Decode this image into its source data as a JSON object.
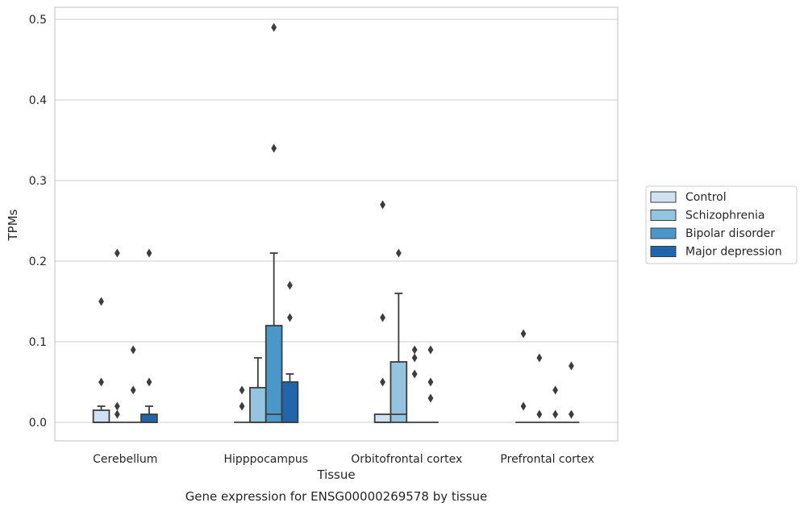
{
  "chart_data": {
    "type": "boxplot",
    "title": "",
    "xlabel": "Tissue",
    "ylabel": "TPMs",
    "caption": "Gene expression for ENSG00000269578 by tissue",
    "ylim": [
      -0.023,
      0.515
    ],
    "yticks": [
      "0.0",
      "0.1",
      "0.2",
      "0.3",
      "0.4",
      "0.5"
    ],
    "grid": true,
    "legend_position": "right",
    "categories": [
      "Cerebellum",
      "Hipppocampus",
      "Orbitofrontal cortex",
      "Prefrontal cortex"
    ],
    "series": [
      {
        "name": "Control",
        "color": "#d0e1f2",
        "boxes": [
          {
            "q1": 0.0,
            "median": 0.0,
            "q3": 0.015,
            "whislo": 0.0,
            "whishi": 0.02,
            "fliers": [
              0.05,
              0.15
            ]
          },
          {
            "q1": 0.0,
            "median": 0.0,
            "q3": 0.0,
            "whislo": 0.0,
            "whishi": 0.0,
            "fliers": [
              0.02,
              0.04
            ]
          },
          {
            "q1": 0.0,
            "median": 0.0,
            "q3": 0.01,
            "whislo": 0.0,
            "whishi": 0.01,
            "fliers": [
              0.05,
              0.13,
              0.27
            ]
          },
          {
            "q1": 0.0,
            "median": 0.0,
            "q3": 0.0,
            "whislo": 0.0,
            "whishi": 0.0,
            "fliers": [
              0.02,
              0.11
            ]
          }
        ]
      },
      {
        "name": "Schizophrenia",
        "color": "#94c4df",
        "boxes": [
          {
            "q1": 0.0,
            "median": 0.0,
            "q3": 0.0,
            "whislo": 0.0,
            "whishi": 0.0,
            "fliers": [
              0.01,
              0.02,
              0.21
            ]
          },
          {
            "q1": 0.0,
            "median": 0.0,
            "q3": 0.043,
            "whislo": 0.0,
            "whishi": 0.08,
            "fliers": []
          },
          {
            "q1": 0.0,
            "median": 0.01,
            "q3": 0.075,
            "whislo": 0.0,
            "whishi": 0.16,
            "fliers": [
              0.21
            ]
          },
          {
            "q1": 0.0,
            "median": 0.0,
            "q3": 0.0,
            "whislo": 0.0,
            "whishi": 0.0,
            "fliers": [
              0.01,
              0.08
            ]
          }
        ]
      },
      {
        "name": "Bipolar disorder",
        "color": "#4a98c9",
        "boxes": [
          {
            "q1": 0.0,
            "median": 0.0,
            "q3": 0.0,
            "whislo": 0.0,
            "whishi": 0.0,
            "fliers": [
              0.04,
              0.09
            ]
          },
          {
            "q1": 0.0,
            "median": 0.01,
            "q3": 0.12,
            "whislo": 0.0,
            "whishi": 0.21,
            "fliers": [
              0.34,
              0.49
            ]
          },
          {
            "q1": 0.0,
            "median": 0.0,
            "q3": 0.0,
            "whislo": 0.0,
            "whishi": 0.0,
            "fliers": [
              0.06,
              0.08,
              0.09
            ]
          },
          {
            "q1": 0.0,
            "median": 0.0,
            "q3": 0.0,
            "whislo": 0.0,
            "whishi": 0.0,
            "fliers": [
              0.01,
              0.04
            ]
          }
        ]
      },
      {
        "name": "Major depression",
        "color": "#2166ac",
        "boxes": [
          {
            "q1": 0.0,
            "median": 0.0,
            "q3": 0.01,
            "whislo": 0.0,
            "whishi": 0.02,
            "fliers": [
              0.05,
              0.21
            ]
          },
          {
            "q1": 0.0,
            "median": 0.0,
            "q3": 0.05,
            "whislo": 0.0,
            "whishi": 0.06,
            "fliers": [
              0.13,
              0.17
            ]
          },
          {
            "q1": 0.0,
            "median": 0.0,
            "q3": 0.0,
            "whislo": 0.0,
            "whishi": 0.0,
            "fliers": [
              0.03,
              0.05,
              0.09
            ]
          },
          {
            "q1": 0.0,
            "median": 0.0,
            "q3": 0.0,
            "whislo": 0.0,
            "whishi": 0.0,
            "fliers": [
              0.01,
              0.07
            ]
          }
        ]
      }
    ]
  }
}
